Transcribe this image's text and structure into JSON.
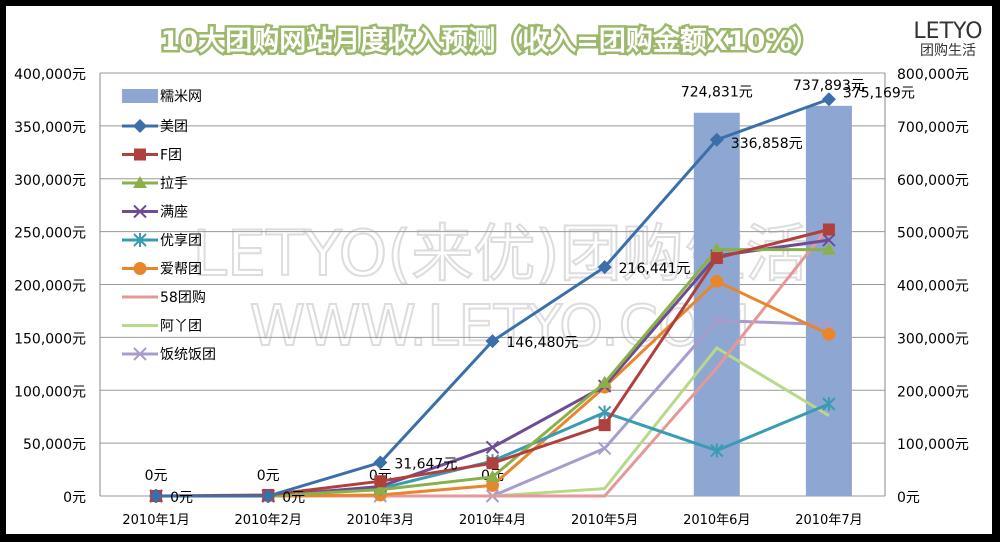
{
  "chart_data": {
    "type": "bar+line",
    "title": "10大团购网站月度收入预测（收入=团购金额X10%）",
    "logo": {
      "top": "LETYO",
      "bottom": "团购生活"
    },
    "watermark": [
      "LETYO(来优)团购生活",
      "WWW.LETYO.COM"
    ],
    "categories": [
      "2010年1月",
      "2010年2月",
      "2010年3月",
      "2010年4月",
      "2010年5月",
      "2010年6月",
      "2010年7月"
    ],
    "y_left": {
      "range": [
        0,
        400000
      ],
      "ticks": [
        "0元",
        "50,000元",
        "100,000元",
        "150,000元",
        "200,000元",
        "250,000元",
        "300,000元",
        "350,000元",
        "400,000元"
      ]
    },
    "y_right": {
      "range": [
        0,
        800000
      ],
      "ticks": [
        "0元",
        "100,000元",
        "200,000元",
        "300,000元",
        "400,000元",
        "500,000元",
        "600,000元",
        "700,000元",
        "800,000元"
      ]
    },
    "grid": true,
    "legend": "top-left",
    "bar_series": {
      "name": "糯米网",
      "color": "#8EA7D2",
      "axis": "right",
      "values": [
        0,
        0,
        0,
        0,
        0,
        724831,
        737893
      ],
      "labels": [
        "0元",
        "0元",
        "0元",
        "0元",
        "",
        "724,831元",
        "737,893元"
      ]
    },
    "series": [
      {
        "name": "美团",
        "color": "#3C6EAA",
        "marker": "diamond",
        "values": [
          0,
          0,
          31647,
          146480,
          216441,
          336858,
          375169
        ],
        "labels": [
          "0元",
          "0元",
          "31,647元",
          "146,480元",
          "216,441元",
          "336,858元",
          "375,169元"
        ]
      },
      {
        "name": "F团",
        "color": "#B0403C",
        "marker": "square",
        "values": [
          0,
          1000,
          14000,
          31000,
          67000,
          225000,
          252000
        ]
      },
      {
        "name": "拉手",
        "color": "#8AB04A",
        "marker": "triangle",
        "values": [
          0,
          0,
          6000,
          18000,
          107000,
          233000,
          233000
        ]
      },
      {
        "name": "满座",
        "color": "#6E4C94",
        "marker": "x",
        "values": [
          0,
          0,
          9000,
          46000,
          104000,
          227000,
          242000
        ]
      },
      {
        "name": "优享团",
        "color": "#3A9CB4",
        "marker": "star",
        "values": [
          0,
          0,
          7000,
          33000,
          79000,
          43000,
          87000
        ]
      },
      {
        "name": "爱帮团",
        "color": "#E8862E",
        "marker": "circle",
        "values": [
          0,
          0,
          1000,
          10000,
          103000,
          203000,
          153000
        ]
      },
      {
        "name": "58团购",
        "color": "#E49898",
        "marker": "none",
        "values": [
          0,
          0,
          0,
          0,
          0,
          121000,
          255000
        ]
      },
      {
        "name": "阿丫团",
        "color": "#B8D88A",
        "marker": "none",
        "values": [
          0,
          0,
          0,
          0,
          7000,
          140000,
          76000
        ]
      },
      {
        "name": "饭统饭团",
        "color": "#A89CCC",
        "marker": "x",
        "values": [
          0,
          0,
          0,
          0,
          45000,
          166000,
          162000
        ]
      }
    ]
  }
}
